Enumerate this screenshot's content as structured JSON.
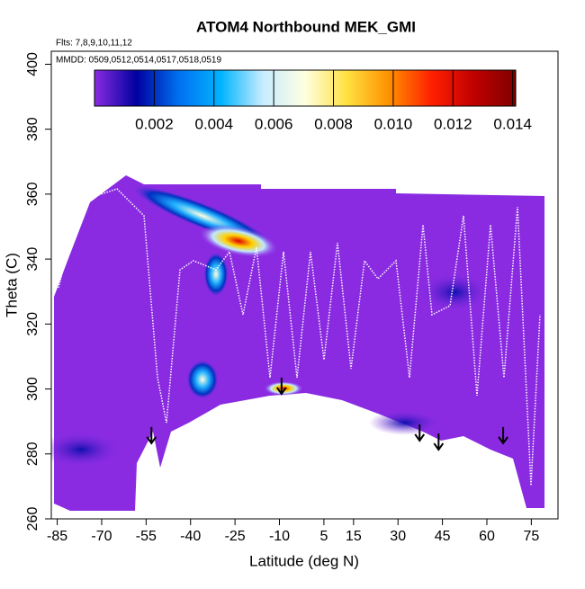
{
  "chart_data": {
    "type": "heatmap",
    "title": "ATOM4 Northbound MEK_GMI",
    "annotations": [
      "Flts: 7,8,9,10,11,12",
      "MMDD: 0509,0512,0514,0517,0518,0519"
    ],
    "xlabel": "Latitude (deg N)",
    "ylabel": "Theta (C)",
    "xlim": [
      -87,
      84
    ],
    "xticks": [
      -85,
      -70,
      -55,
      -40,
      -25,
      -10,
      5,
      15,
      30,
      45,
      60,
      75
    ],
    "ylim": [
      260,
      404
    ],
    "yticks": [
      260,
      280,
      300,
      320,
      340,
      360,
      380,
      400
    ],
    "colorbar": {
      "lim": [
        0,
        0.0141
      ],
      "ticks": [
        0.002,
        0.004,
        0.006,
        0.008,
        {
          "value": 0.01,
          "label": "0.010"
        },
        0.012,
        0.014
      ],
      "colors": [
        "#8a2be2",
        "#0000a0",
        "#0070f0",
        "#00b4ff",
        "#c8ecff",
        "#ffffe0",
        "#ffe040",
        "#ff9000",
        "#ff2000",
        "#c00000",
        "#800000"
      ]
    },
    "arrows": {
      "lat": [
        -53.2,
        -9.3,
        37.3,
        43.7,
        65.5
      ],
      "theta": [
        283.3,
        298.5,
        284.1,
        281.3,
        283.3
      ]
    }
  }
}
